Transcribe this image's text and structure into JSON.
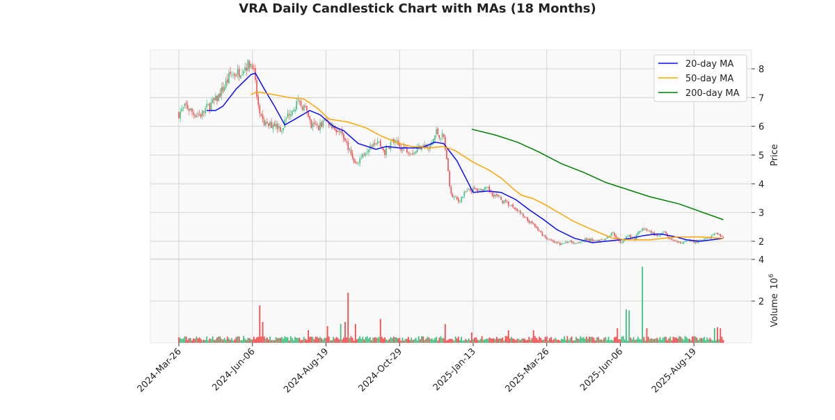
{
  "chart_data": {
    "type": "candlestick",
    "title": "VRA Daily Candlestick Chart with MAs (18 Months)",
    "ylabel_price": "Price",
    "ylabel_volume": "Volume",
    "volume_exponent_base": "10",
    "volume_exponent": "6",
    "price_ylim": [
      1.65,
      8.65
    ],
    "price_ticks": [
      2,
      3,
      4,
      5,
      6,
      7,
      8
    ],
    "volume_ylim": [
      0,
      4
    ],
    "volume_ticks": [
      2,
      4
    ],
    "x_ticks": [
      {
        "index": 0,
        "label": "2024-Mar-26"
      },
      {
        "index": 50,
        "label": "2024-Jun-06"
      },
      {
        "index": 100,
        "label": "2024-Aug-19"
      },
      {
        "index": 150,
        "label": "2024-Oct-29"
      },
      {
        "index": 200,
        "label": "2025-Jan-13"
      },
      {
        "index": 250,
        "label": "2025-Mar-26"
      },
      {
        "index": 300,
        "label": "2025-Jun-06"
      },
      {
        "index": 350,
        "label": "2025-Aug-19"
      }
    ],
    "n_bars": 371,
    "close_every_5_bars": [
      6.45,
      6.7,
      6.45,
      6.4,
      6.7,
      6.9,
      7.3,
      7.8,
      7.85,
      8.1,
      8.2,
      6.3,
      6.0,
      6.1,
      5.9,
      6.5,
      6.8,
      6.7,
      6.0,
      6.0,
      6.2,
      6.0,
      5.7,
      5.3,
      4.7,
      5.0,
      5.4,
      5.5,
      5.1,
      5.5,
      5.3,
      5.2,
      5.1,
      5.4,
      5.2,
      5.8,
      5.6,
      3.6,
      3.4,
      3.7,
      3.8,
      3.8,
      3.8,
      3.6,
      3.4,
      3.25,
      3.1,
      2.8,
      2.6,
      2.35,
      2.1,
      1.95,
      1.9,
      2.0,
      1.95,
      2.05,
      2.05,
      2.05,
      2.1,
      2.3,
      1.95,
      2.2,
      2.1,
      2.5,
      2.35,
      2.15,
      2.3,
      2.0,
      1.95,
      2.0,
      2.0,
      2.0,
      2.1,
      2.3,
      2.1
    ],
    "volume_base_millions": 0.25,
    "volume_spikes_millions": [
      [
        55,
        1.8
      ],
      [
        57,
        1.0
      ],
      [
        88,
        0.6
      ],
      [
        101,
        0.8
      ],
      [
        110,
        0.9
      ],
      [
        113,
        1.0
      ],
      [
        115,
        2.4
      ],
      [
        120,
        0.9
      ],
      [
        137,
        1.15
      ],
      [
        181,
        0.9
      ],
      [
        199,
        0.5
      ],
      [
        224,
        0.6
      ],
      [
        241,
        0.6
      ],
      [
        298,
        0.7
      ],
      [
        304,
        1.6
      ],
      [
        306,
        1.55
      ],
      [
        315,
        3.65
      ],
      [
        318,
        0.7
      ],
      [
        364,
        0.7
      ],
      [
        366,
        0.75
      ],
      [
        368,
        0.7
      ]
    ],
    "series": [
      {
        "name": "20-day MA",
        "color": "#0a0aff",
        "points": [
          [
            19,
            6.55
          ],
          [
            25,
            6.55
          ],
          [
            30,
            6.7
          ],
          [
            39,
            7.3
          ],
          [
            49,
            7.8
          ],
          [
            52,
            7.85
          ],
          [
            58,
            7.3
          ],
          [
            65,
            6.7
          ],
          [
            72,
            6.05
          ],
          [
            79,
            6.25
          ],
          [
            89,
            6.55
          ],
          [
            96,
            6.4
          ],
          [
            105,
            6.0
          ],
          [
            112,
            5.85
          ],
          [
            122,
            5.4
          ],
          [
            134,
            5.2
          ],
          [
            141,
            5.3
          ],
          [
            150,
            5.25
          ],
          [
            165,
            5.25
          ],
          [
            174,
            5.45
          ],
          [
            180,
            5.4
          ],
          [
            189,
            4.8
          ],
          [
            196,
            4.1
          ],
          [
            200,
            3.7
          ],
          [
            210,
            3.75
          ],
          [
            219,
            3.7
          ],
          [
            229,
            3.45
          ],
          [
            238,
            3.1
          ],
          [
            248,
            2.75
          ],
          [
            257,
            2.4
          ],
          [
            269,
            2.1
          ],
          [
            281,
            1.95
          ],
          [
            290,
            2.0
          ],
          [
            300,
            2.05
          ],
          [
            307,
            2.1
          ],
          [
            316,
            2.2
          ],
          [
            324,
            2.25
          ],
          [
            328,
            2.25
          ],
          [
            338,
            2.15
          ],
          [
            345,
            2.05
          ],
          [
            354,
            2.0
          ],
          [
            370,
            2.1
          ]
        ]
      },
      {
        "name": "50-day MA",
        "color": "#ffa500",
        "points": [
          [
            49,
            7.1
          ],
          [
            53,
            7.2
          ],
          [
            65,
            7.1
          ],
          [
            75,
            7.0
          ],
          [
            85,
            6.95
          ],
          [
            95,
            6.6
          ],
          [
            102,
            6.25
          ],
          [
            115,
            6.15
          ],
          [
            127,
            5.95
          ],
          [
            138,
            5.65
          ],
          [
            150,
            5.4
          ],
          [
            158,
            5.3
          ],
          [
            170,
            5.25
          ],
          [
            180,
            5.3
          ],
          [
            188,
            5.15
          ],
          [
            200,
            4.75
          ],
          [
            210,
            4.5
          ],
          [
            219,
            4.2
          ],
          [
            229,
            3.75
          ],
          [
            233,
            3.6
          ],
          [
            240,
            3.5
          ],
          [
            248,
            3.3
          ],
          [
            258,
            3.0
          ],
          [
            268,
            2.7
          ],
          [
            281,
            2.4
          ],
          [
            295,
            2.1
          ],
          [
            305,
            2.05
          ],
          [
            320,
            2.05
          ],
          [
            338,
            2.15
          ],
          [
            355,
            2.15
          ],
          [
            370,
            2.1
          ]
        ]
      },
      {
        "name": "200-day MA",
        "color": "#008000",
        "points": [
          [
            199,
            5.9
          ],
          [
            215,
            5.7
          ],
          [
            230,
            5.45
          ],
          [
            245,
            5.1
          ],
          [
            260,
            4.7
          ],
          [
            275,
            4.4
          ],
          [
            290,
            4.05
          ],
          [
            305,
            3.8
          ],
          [
            320,
            3.55
          ],
          [
            340,
            3.3
          ],
          [
            370,
            2.75
          ]
        ]
      }
    ],
    "up_color": "#3fbf7f",
    "down_color": "#f44c4c",
    "grid": true,
    "legend_placement": "top-right"
  }
}
